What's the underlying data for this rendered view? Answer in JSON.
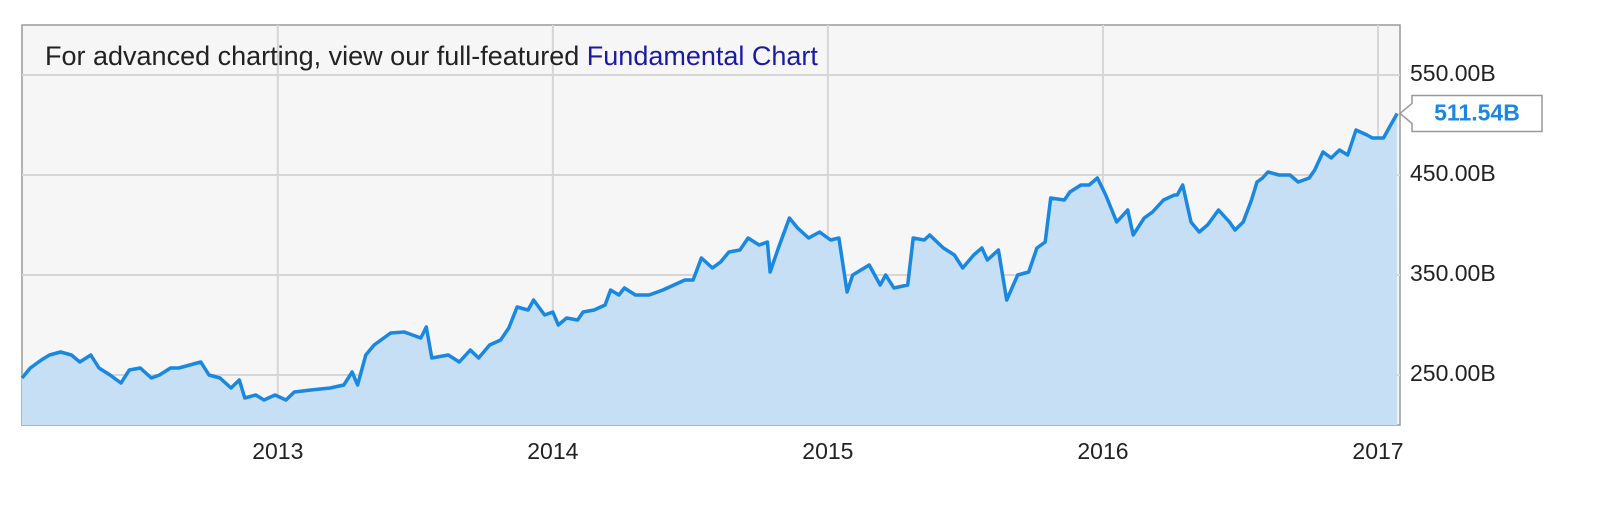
{
  "chart_data": {
    "type": "area",
    "note": {
      "text": "For advanced charting, view our full-featured",
      "link": "Fundamental Chart"
    },
    "x": [
      2012.07,
      2012.1,
      2012.14,
      2012.17,
      2012.21,
      2012.25,
      2012.28,
      2012.32,
      2012.35,
      2012.39,
      2012.43,
      2012.46,
      2012.5,
      2012.54,
      2012.57,
      2012.61,
      2012.64,
      2012.68,
      2012.72,
      2012.75,
      2012.79,
      2012.83,
      2012.86,
      2012.88,
      2012.92,
      2012.95,
      2012.99,
      2013.03,
      2013.06,
      2013.12,
      2013.19,
      2013.24,
      2013.27,
      2013.29,
      2013.32,
      2013.35,
      2013.41,
      2013.46,
      2013.52,
      2013.54,
      2013.56,
      2013.62,
      2013.66,
      2013.7,
      2013.73,
      2013.77,
      2013.81,
      2013.84,
      2013.87,
      2013.91,
      2013.93,
      2013.97,
      2014.0,
      2014.02,
      2014.05,
      2014.09,
      2014.11,
      2014.15,
      2014.19,
      2014.21,
      2014.24,
      2014.26,
      2014.3,
      2014.35,
      2014.4,
      2014.44,
      2014.48,
      2014.51,
      2014.54,
      2014.58,
      2014.61,
      2014.64,
      2014.68,
      2014.71,
      2014.75,
      2014.78,
      2014.79,
      2014.82,
      2014.86,
      2014.89,
      2014.93,
      2014.97,
      2015.01,
      2015.04,
      2015.07,
      2015.09,
      2015.15,
      2015.19,
      2015.21,
      2015.24,
      2015.29,
      2015.31,
      2015.35,
      2015.37,
      2015.42,
      2015.46,
      2015.49,
      2015.53,
      2015.56,
      2015.58,
      2015.62,
      2015.65,
      2015.69,
      2015.73,
      2015.76,
      2015.79,
      2015.81,
      2015.86,
      2015.88,
      2015.92,
      2015.95,
      2015.98,
      2016.01,
      2016.05,
      2016.09,
      2016.11,
      2016.15,
      2016.18,
      2016.22,
      2016.26,
      2016.27,
      2016.29,
      2016.32,
      2016.35,
      2016.38,
      2016.42,
      2016.46,
      2016.48,
      2016.51,
      2016.54,
      2016.56,
      2016.58,
      2016.6,
      2016.64,
      2016.68,
      2016.71,
      2016.75,
      2016.77,
      2016.8,
      2016.83,
      2016.86,
      2016.89,
      2016.92,
      2016.96,
      2016.98,
      2017.02,
      2017.04,
      2017.07
    ],
    "series": [
      {
        "color": "#1a87e0",
        "fill": "#c6dff4",
        "values": [
          247,
          257,
          265,
          270,
          273,
          270,
          263,
          270,
          257,
          250,
          242,
          255,
          257,
          247,
          250,
          257,
          257,
          260,
          263,
          250,
          247,
          237,
          245,
          227,
          230,
          225,
          230,
          225,
          233,
          235,
          237,
          240,
          253,
          240,
          270,
          280,
          292,
          293,
          287,
          298,
          267,
          270,
          263,
          275,
          267,
          280,
          285,
          297,
          318,
          315,
          325,
          310,
          313,
          300,
          307,
          305,
          313,
          315,
          320,
          335,
          330,
          337,
          330,
          330,
          335,
          340,
          345,
          345,
          367,
          357,
          363,
          373,
          375,
          387,
          380,
          383,
          353,
          377,
          407,
          397,
          387,
          393,
          385,
          387,
          333,
          350,
          360,
          340,
          350,
          337,
          340,
          387,
          385,
          390,
          377,
          370,
          357,
          370,
          377,
          365,
          375,
          325,
          350,
          353,
          377,
          383,
          427,
          425,
          433,
          440,
          440,
          447,
          430,
          403,
          415,
          390,
          407,
          413,
          425,
          430,
          430,
          440,
          403,
          393,
          400,
          415,
          403,
          395,
          403,
          425,
          443,
          447,
          453,
          450,
          450,
          443,
          447,
          455,
          473,
          467,
          475,
          470,
          495,
          490,
          487,
          487,
          497,
          511.54
        ]
      }
    ],
    "last_value": {
      "value": 511.54,
      "label": "511.54B"
    },
    "xlim": [
      2012.07,
      2017.08
    ],
    "xticks": [
      2013,
      2014,
      2015,
      2016,
      2017
    ],
    "ylim": [
      200,
      600
    ],
    "yticks": [
      {
        "value": 250,
        "label": "250.00B"
      },
      {
        "value": 350,
        "label": "350.00B"
      },
      {
        "value": 450,
        "label": "450.00B"
      },
      {
        "value": 550,
        "label": "550.00B"
      }
    ],
    "grid": true
  }
}
